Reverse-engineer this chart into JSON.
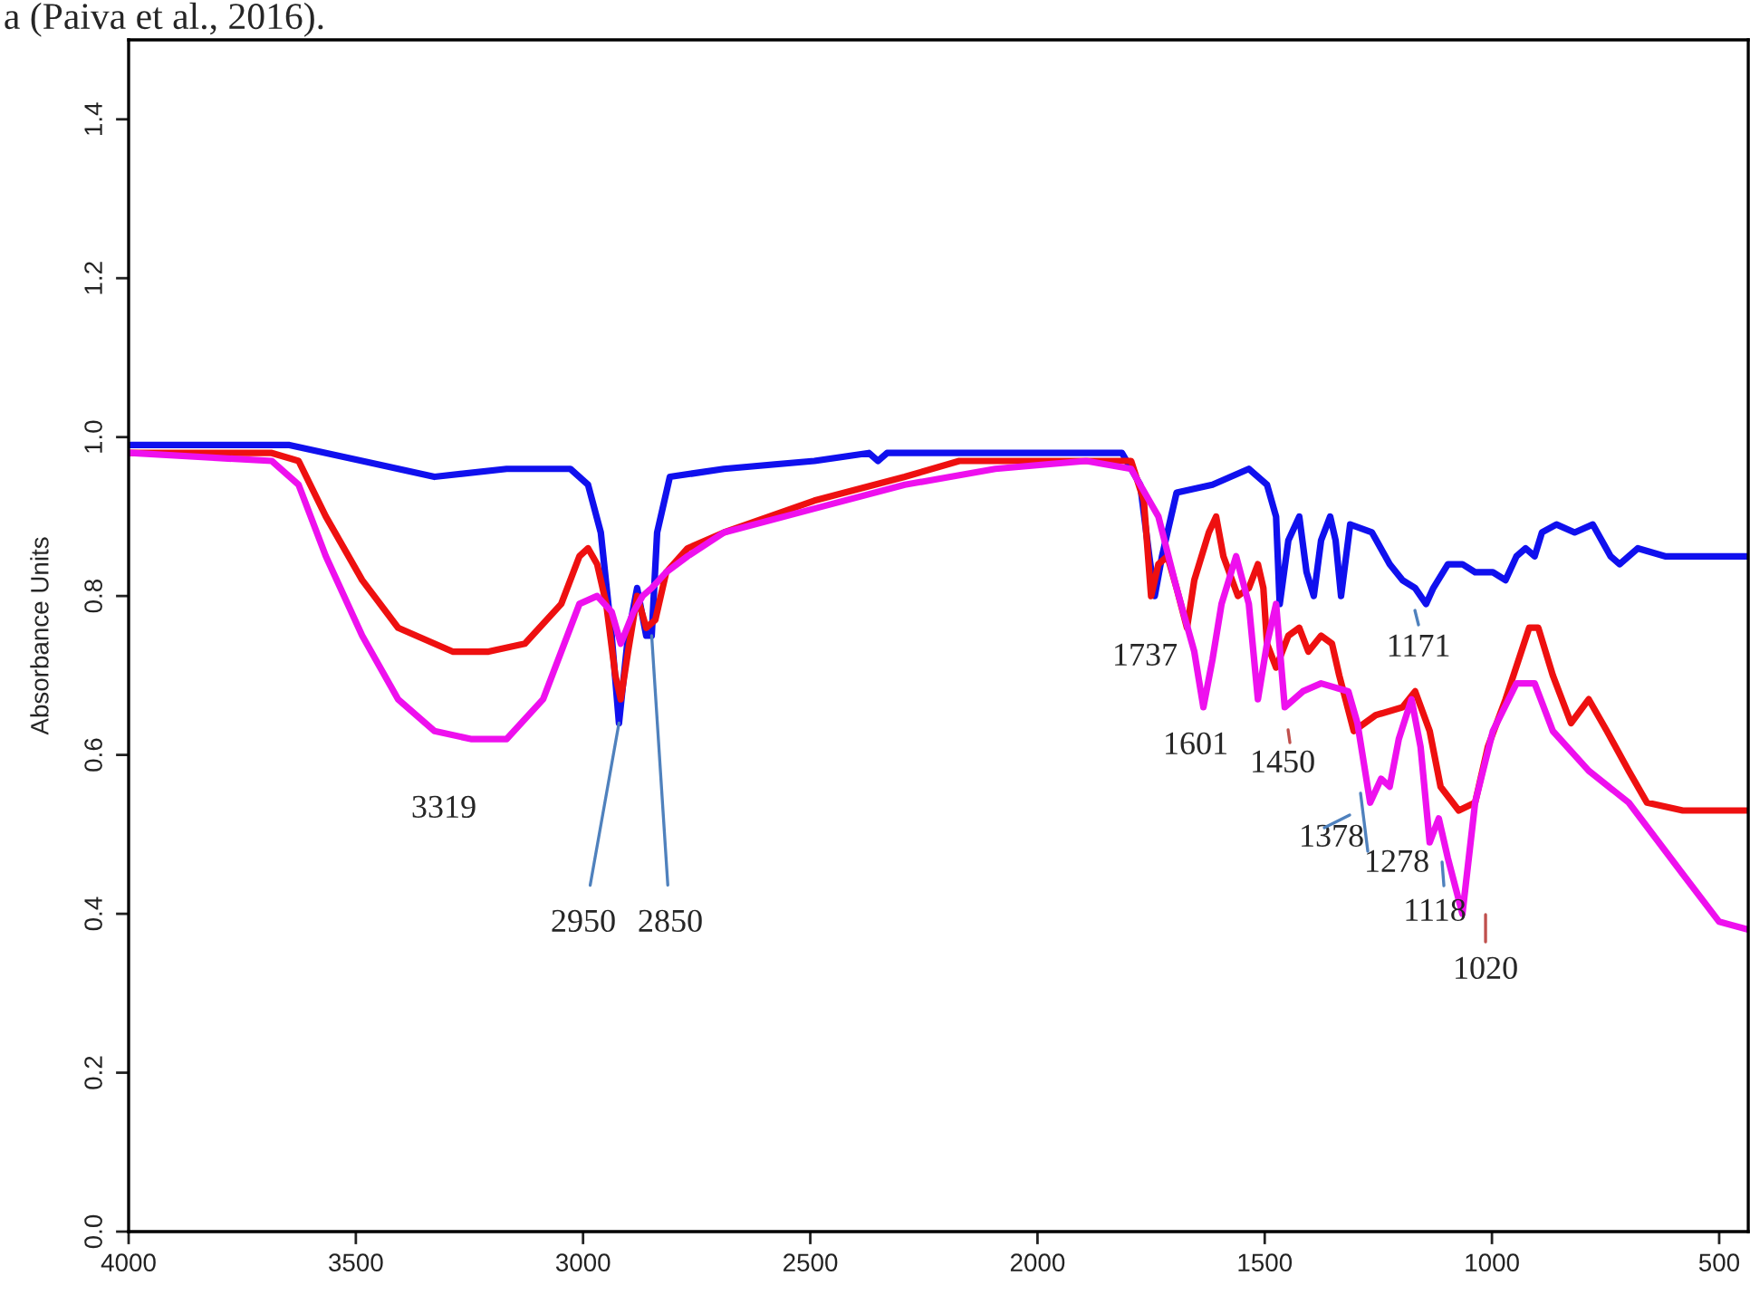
{
  "chart_data": {
    "type": "line",
    "ylabel": "Absorbance Units",
    "xlim": [
      4000,
      436
    ],
    "xticks": [
      4000,
      3500,
      3000,
      2500,
      2000,
      1500,
      1000,
      500
    ],
    "ylim": [
      0,
      1.5
    ],
    "yticks": [
      {
        "value": 0,
        "label": "0.0"
      },
      0.2,
      0.4,
      0.6,
      0.8,
      {
        "value": 1,
        "label": "1.0"
      },
      1.2,
      1.4
    ],
    "grid": false,
    "marker": "none",
    "line_style": "solid",
    "series": [
      {
        "color": "#1010ee",
        "x": [
          3996,
          3805,
          3646,
          3486,
          3327,
          3168,
          3028,
          2989,
          2961,
          2937,
          2921,
          2901,
          2881,
          2861,
          2849,
          2837,
          2809,
          2690,
          2491,
          2371,
          2351,
          2331,
          2172,
          1893,
          1814,
          1774,
          1754,
          1742,
          1726,
          1694,
          1615,
          1535,
          1495,
          1475,
          1467,
          1448,
          1424,
          1408,
          1392,
          1376,
          1356,
          1344,
          1332,
          1312,
          1264,
          1225,
          1197,
          1169,
          1145,
          1129,
          1097,
          1065,
          1037,
          998,
          970,
          946,
          926,
          906,
          890,
          858,
          818,
          778,
          739,
          719,
          679,
          619,
          540,
          436
        ],
        "values": [
          0.99,
          0.99,
          0.99,
          0.97,
          0.95,
          0.96,
          0.96,
          0.94,
          0.88,
          0.75,
          0.64,
          0.75,
          0.81,
          0.75,
          0.75,
          0.88,
          0.95,
          0.96,
          0.97,
          0.98,
          0.97,
          0.98,
          0.98,
          0.98,
          0.98,
          0.94,
          0.85,
          0.8,
          0.85,
          0.93,
          0.94,
          0.96,
          0.94,
          0.9,
          0.79,
          0.87,
          0.9,
          0.83,
          0.8,
          0.87,
          0.9,
          0.87,
          0.8,
          0.89,
          0.88,
          0.84,
          0.82,
          0.81,
          0.79,
          0.81,
          0.84,
          0.84,
          0.83,
          0.83,
          0.82,
          0.85,
          0.86,
          0.85,
          0.88,
          0.89,
          0.88,
          0.89,
          0.85,
          0.84,
          0.86,
          0.85,
          0.85,
          0.85
        ]
      },
      {
        "color": "#ee1010",
        "x": [
          3996,
          3685,
          3626,
          3566,
          3486,
          3407,
          3287,
          3208,
          3128,
          3048,
          3008,
          2989,
          2969,
          2949,
          2929,
          2917,
          2901,
          2881,
          2861,
          2841,
          2817,
          2770,
          2690,
          2491,
          2292,
          2172,
          1893,
          1794,
          1766,
          1750,
          1734,
          1714,
          1694,
          1671,
          1655,
          1623,
          1607,
          1591,
          1559,
          1535,
          1515,
          1503,
          1495,
          1475,
          1448,
          1424,
          1404,
          1376,
          1352,
          1336,
          1304,
          1256,
          1197,
          1169,
          1137,
          1113,
          1073,
          1037,
          1009,
          970,
          918,
          898,
          866,
          826,
          787,
          747,
          699,
          659,
          580,
          500,
          436
        ],
        "values": [
          0.98,
          0.98,
          0.97,
          0.9,
          0.82,
          0.76,
          0.73,
          0.73,
          0.74,
          0.79,
          0.85,
          0.86,
          0.84,
          0.79,
          0.7,
          0.67,
          0.73,
          0.8,
          0.76,
          0.77,
          0.83,
          0.86,
          0.88,
          0.92,
          0.95,
          0.97,
          0.97,
          0.97,
          0.92,
          0.8,
          0.84,
          0.85,
          0.81,
          0.76,
          0.82,
          0.88,
          0.9,
          0.85,
          0.8,
          0.81,
          0.84,
          0.81,
          0.74,
          0.71,
          0.75,
          0.76,
          0.73,
          0.75,
          0.74,
          0.7,
          0.63,
          0.65,
          0.66,
          0.68,
          0.63,
          0.56,
          0.53,
          0.54,
          0.61,
          0.67,
          0.76,
          0.76,
          0.7,
          0.64,
          0.67,
          0.63,
          0.58,
          0.54,
          0.53,
          0.53,
          0.53
        ]
      },
      {
        "color": "#ee10ee",
        "x": [
          3996,
          3685,
          3626,
          3566,
          3486,
          3407,
          3327,
          3247,
          3168,
          3088,
          3008,
          2969,
          2937,
          2917,
          2889,
          2869,
          2849,
          2817,
          2770,
          2690,
          2491,
          2292,
          2093,
          1893,
          1794,
          1734,
          1694,
          1655,
          1635,
          1615,
          1595,
          1563,
          1535,
          1515,
          1495,
          1475,
          1456,
          1436,
          1416,
          1376,
          1316,
          1296,
          1268,
          1244,
          1225,
          1205,
          1177,
          1157,
          1137,
          1117,
          1097,
          1065,
          1037,
          998,
          946,
          906,
          866,
          787,
          699,
          580,
          500,
          436
        ],
        "values": [
          0.98,
          0.97,
          0.94,
          0.85,
          0.75,
          0.67,
          0.63,
          0.62,
          0.62,
          0.67,
          0.79,
          0.8,
          0.78,
          0.74,
          0.78,
          0.8,
          0.81,
          0.83,
          0.85,
          0.88,
          0.91,
          0.94,
          0.96,
          0.97,
          0.96,
          0.9,
          0.81,
          0.73,
          0.66,
          0.72,
          0.79,
          0.85,
          0.79,
          0.67,
          0.74,
          0.79,
          0.66,
          0.67,
          0.68,
          0.69,
          0.68,
          0.64,
          0.54,
          0.57,
          0.56,
          0.62,
          0.67,
          0.61,
          0.49,
          0.52,
          0.47,
          0.4,
          0.54,
          0.63,
          0.69,
          0.69,
          0.63,
          0.58,
          0.54,
          0.45,
          0.39,
          0.38
        ]
      }
    ],
    "annotations": [
      "a (Paiva et al., 2016).",
      "3319",
      {
        "text": "2950",
        "x": 2921,
        "y": 0.64
      },
      {
        "text": "2850",
        "x": 2849,
        "y": 0.75
      },
      "1737",
      "1601",
      "1450",
      "1171",
      "1378",
      "1278",
      "1118",
      "1020"
    ]
  }
}
